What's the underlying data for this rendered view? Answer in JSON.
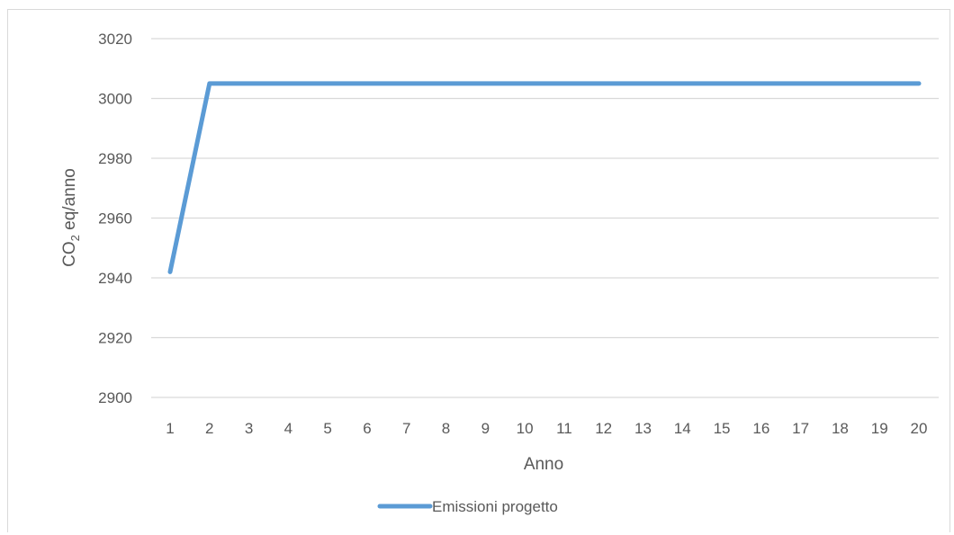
{
  "chart_data": {
    "type": "line",
    "title": "",
    "xlabel": "Anno",
    "ylabel_main": "CO",
    "ylabel_sub": "2",
    "ylabel_rest": " eq/anno",
    "categories": [
      "1",
      "2",
      "3",
      "4",
      "5",
      "6",
      "7",
      "8",
      "9",
      "10",
      "11",
      "12",
      "13",
      "14",
      "15",
      "16",
      "17",
      "18",
      "19",
      "20"
    ],
    "series": [
      {
        "name": "Emissioni progetto",
        "color": "#5b9bd5",
        "values": [
          2942,
          3005,
          3005,
          3005,
          3005,
          3005,
          3005,
          3005,
          3005,
          3005,
          3005,
          3005,
          3005,
          3005,
          3005,
          3005,
          3005,
          3005,
          3005,
          3005
        ]
      }
    ],
    "ylim": [
      2900,
      3020
    ],
    "yticks": [
      "2900",
      "2920",
      "2940",
      "2960",
      "2980",
      "3000",
      "3020"
    ],
    "grid": true,
    "legend": "bottom"
  }
}
